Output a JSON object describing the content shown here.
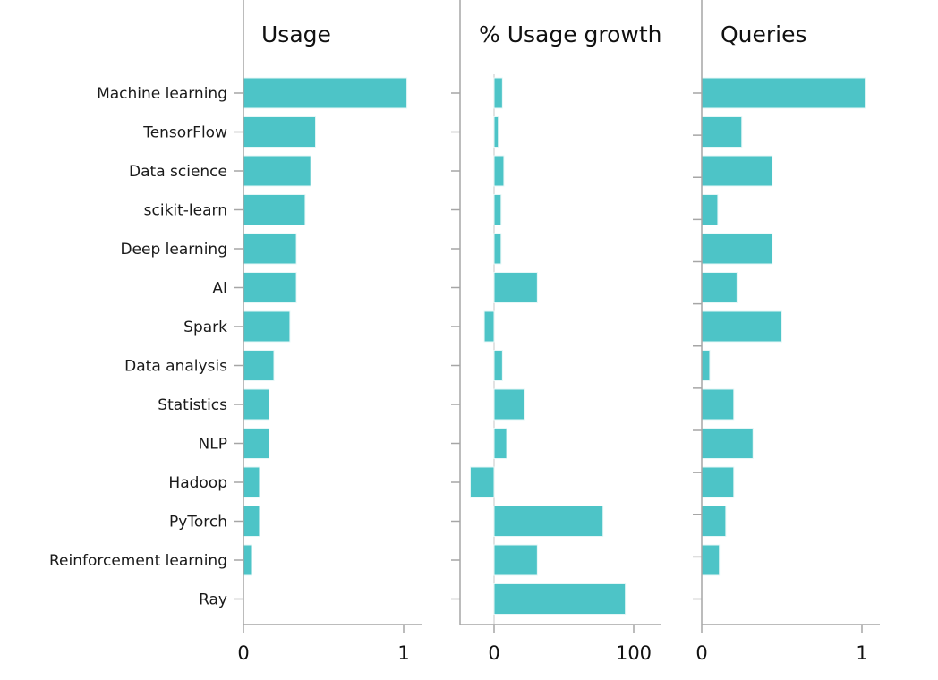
{
  "chart_data": [
    {
      "type": "bar",
      "orientation": "horizontal",
      "title": "Usage",
      "categories": [
        "Machine learning",
        "TensorFlow",
        "Data science",
        "scikit-learn",
        "Deep learning",
        "AI",
        "Spark",
        "Data analysis",
        "Statistics",
        "NLP",
        "Hadoop",
        "PyTorch",
        "Reinforcement learning",
        "Ray"
      ],
      "values": [
        1.02,
        0.45,
        0.42,
        0.385,
        0.33,
        0.33,
        0.29,
        0.19,
        0.16,
        0.16,
        0.1,
        0.1,
        0.05,
        0
      ],
      "xticks": [
        0,
        1
      ],
      "xtick_labels": [
        "0",
        "1"
      ],
      "xlim": [
        0,
        1.12
      ],
      "grid": false,
      "color": "#4DC4C7"
    },
    {
      "type": "bar",
      "orientation": "horizontal",
      "title": "% Usage growth",
      "categories": [
        "Machine learning",
        "TensorFlow",
        "Data science",
        "scikit-learn",
        "Deep learning",
        "AI",
        "Spark",
        "Data analysis",
        "Statistics",
        "NLP",
        "Hadoop",
        "PyTorch",
        "Reinforcement learning",
        "Ray"
      ],
      "values": [
        6,
        3,
        7,
        5,
        5,
        31,
        -7,
        6,
        22,
        9,
        -17,
        78,
        31,
        94
      ],
      "xticks": [
        0,
        100
      ],
      "xtick_labels": [
        "0",
        "100"
      ],
      "xlim": [
        -24,
        120
      ],
      "grid": false,
      "color": "#4DC4C7"
    },
    {
      "type": "bar",
      "orientation": "horizontal",
      "title": "Queries",
      "categories": [
        "Machine learning",
        "TensorFlow",
        "Data science",
        "scikit-learn",
        "Deep learning",
        "AI",
        "Spark",
        "Data analysis",
        "Statistics",
        "NLP",
        "Hadoop",
        "PyTorch",
        "Reinforcement learning",
        "Ray"
      ],
      "values": [
        1.02,
        0.25,
        0.44,
        0.1,
        0.44,
        0.22,
        0.5,
        0.05,
        0.2,
        0.32,
        0.2,
        0.15,
        0.11,
        0
      ],
      "xticks": [
        0,
        1
      ],
      "xtick_labels": [
        "0",
        "1"
      ],
      "xlim": [
        0,
        1.12
      ],
      "ytick_count": 13,
      "grid": false,
      "color": "#4DC4C7"
    }
  ]
}
